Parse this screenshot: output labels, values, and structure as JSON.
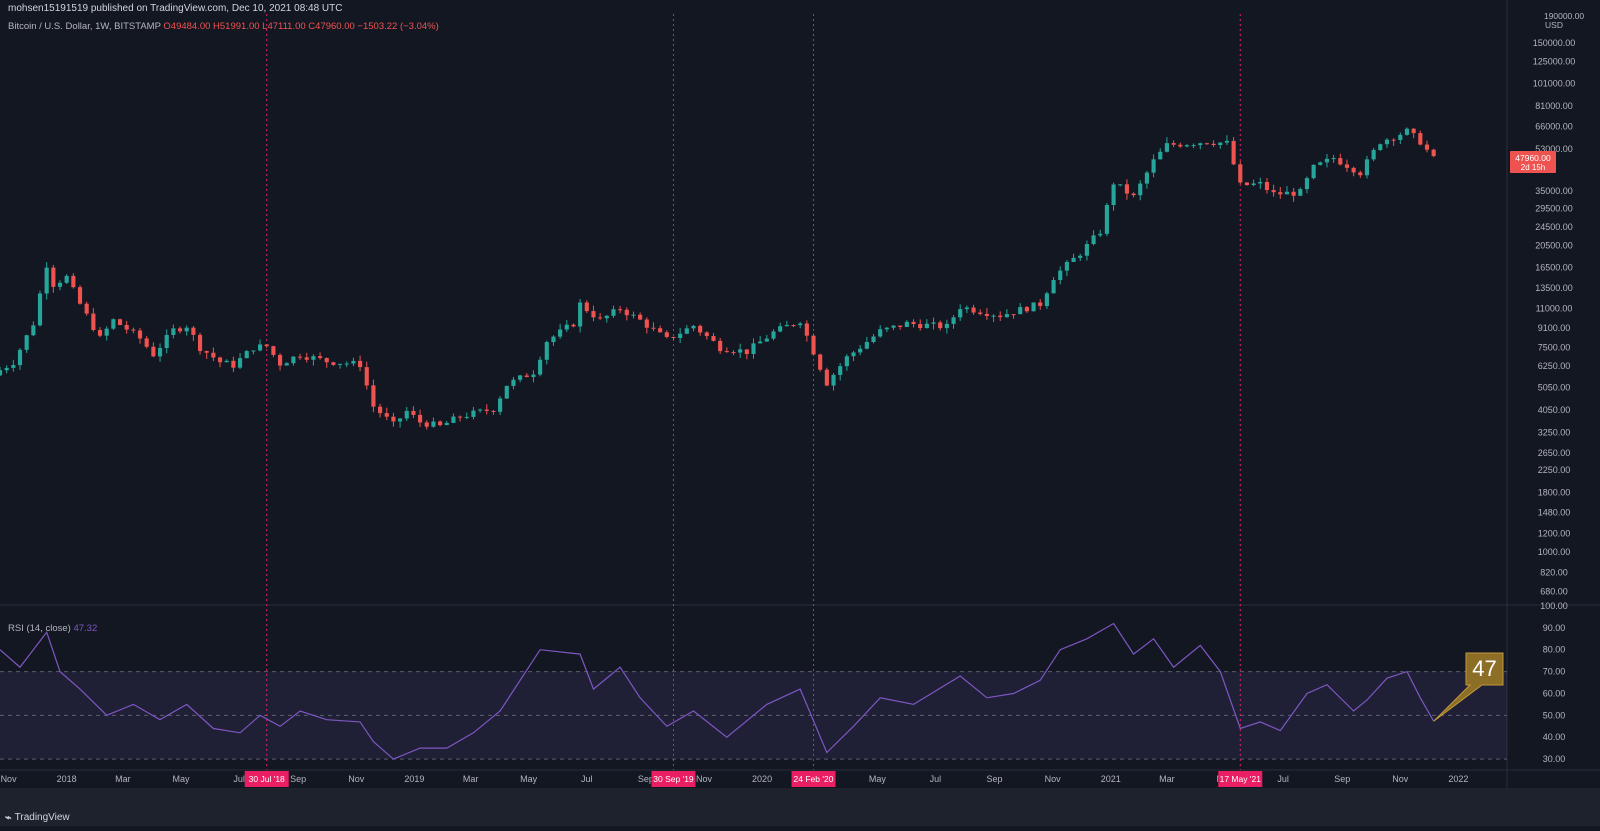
{
  "header": {
    "published": "mohsen15191519 published on TradingView.com, Dec 10, 2021 08:48 UTC",
    "symbol": "Bitcoin / U.S. Dollar, 1W, BITSTAMP",
    "ohlc": "O49484.00 H51991.00 L47111.00 C47960.00 −1503.22 (−3.04%)"
  },
  "rsi_header": {
    "label": "RSI (14, close)",
    "value": "47.32"
  },
  "footer": {
    "brand": "TradingView",
    "logo": "tradingview-logo-icon"
  },
  "colors": {
    "background": "#131722",
    "up": "#26a69a",
    "down": "#ef5350",
    "marker": "#e91e63",
    "rsi_line": "#7e57c2",
    "callout": "#8d6e27"
  },
  "chart_data": [
    {
      "type": "candlestick",
      "title": "Bitcoin / U.S. Dollar, 1W, BITSTAMP",
      "scale": "log",
      "currency": "USD",
      "ylim": [
        600,
        200000
      ],
      "xlim": [
        "2017-10-23",
        "2022-02-21"
      ],
      "grid": false,
      "y_ticks": [
        "150000.00",
        "125000.00",
        "101000.00",
        "81000.00",
        "66000.00",
        "53000.00",
        "35000.00",
        "29500.00",
        "24500.00",
        "20500.00",
        "16500.00",
        "13500.00",
        "11000.00",
        "9100.00",
        "7500.00",
        "6250.00",
        "5050.00",
        "4050.00",
        "3250.00",
        "2650.00",
        "2250.00",
        "1800.00",
        "1480.00",
        "1200.00",
        "1000.00",
        "820.00",
        "680.00"
      ],
      "y_tick_values": [
        150000,
        125000,
        101000,
        81000,
        66000,
        53000,
        35000,
        29500,
        24500,
        20500,
        16500,
        13500,
        11000,
        9100,
        7500,
        6250,
        5050,
        4050,
        3250,
        2650,
        2250,
        1800,
        1480,
        1200,
        1000,
        820,
        680
      ],
      "y_axis_top_label": "190000.00",
      "y_axis_unit": "USD",
      "x_ticks": [
        "Nov",
        "2018",
        "Mar",
        "May",
        "Jul",
        "Sep",
        "Nov",
        "2019",
        "Mar",
        "May",
        "Jul",
        "Sep",
        "Nov",
        "2020",
        "Mar",
        "May",
        "Jul",
        "Sep",
        "Nov",
        "2021",
        "Mar",
        "May",
        "Jul",
        "Sep",
        "Nov",
        "2022"
      ],
      "x_tick_dates": [
        "2017-11-01",
        "2018-01-01",
        "2018-03-01",
        "2018-05-01",
        "2018-07-01",
        "2018-09-01",
        "2018-11-01",
        "2019-01-01",
        "2019-03-01",
        "2019-05-01",
        "2019-07-01",
        "2019-09-01",
        "2019-11-01",
        "2020-01-01",
        "2020-03-01",
        "2020-05-01",
        "2020-07-01",
        "2020-09-01",
        "2020-11-01",
        "2021-01-01",
        "2021-03-01",
        "2021-05-01",
        "2021-07-01",
        "2021-09-01",
        "2021-11-01",
        "2022-01-01"
      ],
      "last_price": {
        "value": 47960,
        "label": "47960.00",
        "countdown": "2d 15h"
      },
      "anchors": [
        {
          "date": "2017-10-23",
          "price": 6000
        },
        {
          "date": "2017-11-06",
          "price": 6500
        },
        {
          "date": "2017-11-27",
          "price": 9500
        },
        {
          "date": "2017-12-11",
          "price": 17000
        },
        {
          "date": "2017-12-18",
          "price": 14000
        },
        {
          "date": "2018-01-01",
          "price": 15000
        },
        {
          "date": "2018-01-15",
          "price": 11500
        },
        {
          "date": "2018-02-05",
          "price": 8200
        },
        {
          "date": "2018-02-19",
          "price": 9800
        },
        {
          "date": "2018-03-05",
          "price": 9000
        },
        {
          "date": "2018-03-19",
          "price": 8200
        },
        {
          "date": "2018-04-02",
          "price": 7000
        },
        {
          "date": "2018-04-23",
          "price": 8900
        },
        {
          "date": "2018-05-07",
          "price": 9300
        },
        {
          "date": "2018-05-21",
          "price": 7500
        },
        {
          "date": "2018-06-11",
          "price": 6500
        },
        {
          "date": "2018-06-25",
          "price": 6300
        },
        {
          "date": "2018-07-16",
          "price": 7500
        },
        {
          "date": "2018-07-30",
          "price": 7600
        },
        {
          "date": "2018-08-13",
          "price": 6400
        },
        {
          "date": "2018-09-03",
          "price": 7000
        },
        {
          "date": "2018-10-01",
          "price": 6550
        },
        {
          "date": "2018-11-05",
          "price": 6350
        },
        {
          "date": "2018-11-19",
          "price": 4200
        },
        {
          "date": "2018-12-10",
          "price": 3500
        },
        {
          "date": "2018-12-24",
          "price": 4000
        },
        {
          "date": "2019-01-07",
          "price": 3600
        },
        {
          "date": "2019-01-28",
          "price": 3450
        },
        {
          "date": "2019-02-18",
          "price": 3800
        },
        {
          "date": "2019-03-25",
          "price": 4100
        },
        {
          "date": "2019-04-08",
          "price": 5200
        },
        {
          "date": "2019-05-06",
          "price": 5900
        },
        {
          "date": "2019-05-20",
          "price": 8000
        },
        {
          "date": "2019-06-17",
          "price": 9500
        },
        {
          "date": "2019-06-24",
          "price": 11500
        },
        {
          "date": "2019-07-15",
          "price": 9800
        },
        {
          "date": "2019-08-05",
          "price": 11000
        },
        {
          "date": "2019-08-26",
          "price": 9800
        },
        {
          "date": "2019-09-23",
          "price": 8100
        },
        {
          "date": "2019-10-21",
          "price": 9300
        },
        {
          "date": "2019-11-18",
          "price": 7500
        },
        {
          "date": "2019-12-16",
          "price": 7200
        },
        {
          "date": "2020-01-13",
          "price": 8700
        },
        {
          "date": "2020-02-10",
          "price": 9800
        },
        {
          "date": "2020-03-09",
          "price": 5300
        },
        {
          "date": "2020-03-30",
          "price": 6800
        },
        {
          "date": "2020-05-04",
          "price": 8800
        },
        {
          "date": "2020-06-01",
          "price": 9500
        },
        {
          "date": "2020-07-13",
          "price": 9200
        },
        {
          "date": "2020-07-27",
          "price": 11200
        },
        {
          "date": "2020-09-07",
          "price": 10300
        },
        {
          "date": "2020-10-19",
          "price": 11500
        },
        {
          "date": "2020-11-02",
          "price": 15000
        },
        {
          "date": "2020-11-30",
          "price": 19000
        },
        {
          "date": "2020-12-21",
          "price": 23500
        },
        {
          "date": "2021-01-04",
          "price": 38000
        },
        {
          "date": "2021-01-25",
          "price": 33000
        },
        {
          "date": "2021-02-15",
          "price": 47000
        },
        {
          "date": "2021-03-01",
          "price": 55000
        },
        {
          "date": "2021-04-12",
          "price": 57000
        },
        {
          "date": "2021-05-03",
          "price": 56000
        },
        {
          "date": "2021-05-17",
          "price": 37000
        },
        {
          "date": "2021-06-07",
          "price": 37500
        },
        {
          "date": "2021-06-21",
          "price": 34000
        },
        {
          "date": "2021-07-19",
          "price": 34500
        },
        {
          "date": "2021-08-02",
          "price": 44000
        },
        {
          "date": "2021-08-23",
          "price": 48500
        },
        {
          "date": "2021-09-20",
          "price": 42000
        },
        {
          "date": "2021-10-11",
          "price": 57000
        },
        {
          "date": "2021-11-08",
          "price": 63000
        },
        {
          "date": "2021-11-22",
          "price": 57000
        },
        {
          "date": "2021-12-06",
          "price": 47960
        }
      ],
      "vertical_markers": [
        {
          "date": "2018-07-30",
          "label": "30 Jul '18"
        },
        {
          "date": "2019-09-30",
          "label": "30 Sep '19"
        },
        {
          "date": "2020-02-24",
          "label": "24 Feb '20"
        },
        {
          "date": "2021-05-17",
          "label": "17 May '21"
        }
      ]
    },
    {
      "type": "line",
      "title": "RSI (14, close)",
      "ylim": [
        25,
        100
      ],
      "y_ticks": [
        "100.00",
        "90.00",
        "80.00",
        "70.00",
        "60.00",
        "50.00",
        "40.00",
        "30.00"
      ],
      "y_tick_values": [
        100,
        90,
        80,
        70,
        60,
        50,
        40,
        30
      ],
      "band": [
        30,
        70
      ],
      "midline": 50,
      "x": [
        "2017-10-23",
        "2017-11-13",
        "2017-12-11",
        "2017-12-25",
        "2018-01-15",
        "2018-02-12",
        "2018-03-12",
        "2018-04-09",
        "2018-05-07",
        "2018-06-04",
        "2018-07-02",
        "2018-07-23",
        "2018-08-13",
        "2018-09-03",
        "2018-10-01",
        "2018-11-05",
        "2018-11-19",
        "2018-12-10",
        "2019-01-07",
        "2019-02-04",
        "2019-03-04",
        "2019-04-01",
        "2019-05-13",
        "2019-06-24",
        "2019-07-08",
        "2019-08-05",
        "2019-08-26",
        "2019-09-23",
        "2019-10-21",
        "2019-11-25",
        "2020-01-06",
        "2020-02-10",
        "2020-03-09",
        "2020-04-06",
        "2020-05-04",
        "2020-06-08",
        "2020-07-27",
        "2020-08-24",
        "2020-09-21",
        "2020-10-19",
        "2020-11-09",
        "2020-12-07",
        "2021-01-04",
        "2021-01-25",
        "2021-02-15",
        "2021-03-08",
        "2021-04-05",
        "2021-04-26",
        "2021-05-17",
        "2021-06-07",
        "2021-06-28",
        "2021-07-26",
        "2021-08-16",
        "2021-09-13",
        "2021-09-27",
        "2021-10-18",
        "2021-11-08",
        "2021-11-22",
        "2021-12-06"
      ],
      "values": [
        80,
        72,
        88,
        70,
        62,
        50,
        55,
        48,
        55,
        44,
        42,
        50,
        45,
        52,
        48,
        47,
        38,
        30,
        35,
        35,
        42,
        52,
        80,
        78,
        62,
        72,
        58,
        45,
        52,
        40,
        55,
        62,
        33,
        45,
        58,
        55,
        68,
        58,
        60,
        66,
        80,
        85,
        92,
        78,
        85,
        72,
        82,
        70,
        44,
        47,
        43,
        60,
        64,
        52,
        57,
        67,
        70,
        58,
        47.32
      ],
      "last_value": {
        "value": 47.32,
        "label": "47"
      }
    }
  ]
}
